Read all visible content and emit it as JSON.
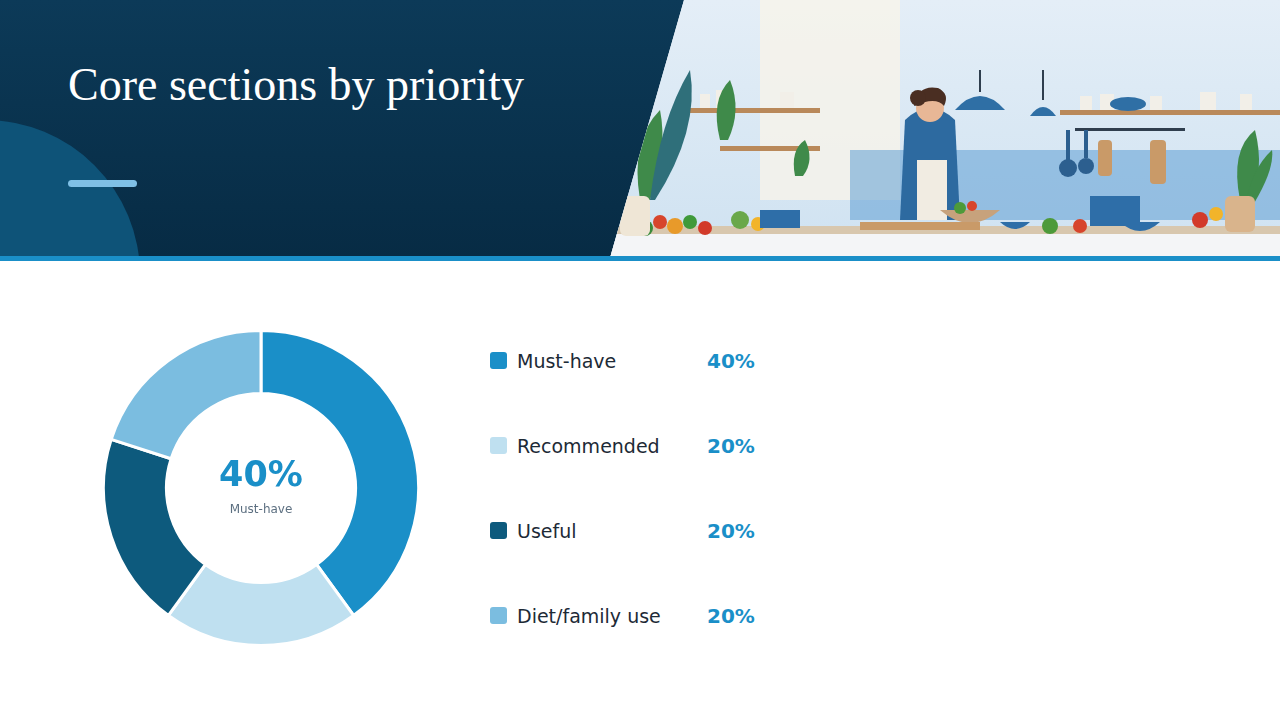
{
  "chart_data": {
    "type": "doughnut",
    "title": "Core sections by priority",
    "categories": [
      "Must-have",
      "Recommended",
      "Useful",
      "Diet/family use"
    ],
    "values": [
      40,
      20,
      20,
      20
    ],
    "value_labels": [
      "40%",
      "20%",
      "20%",
      "20%"
    ],
    "colors": [
      "#1a8fc8",
      "#bfe0f0",
      "#0d5a7d",
      "#7bbde0"
    ],
    "legend": "right",
    "annotations": [
      "40%",
      "Must-have"
    ]
  }
}
